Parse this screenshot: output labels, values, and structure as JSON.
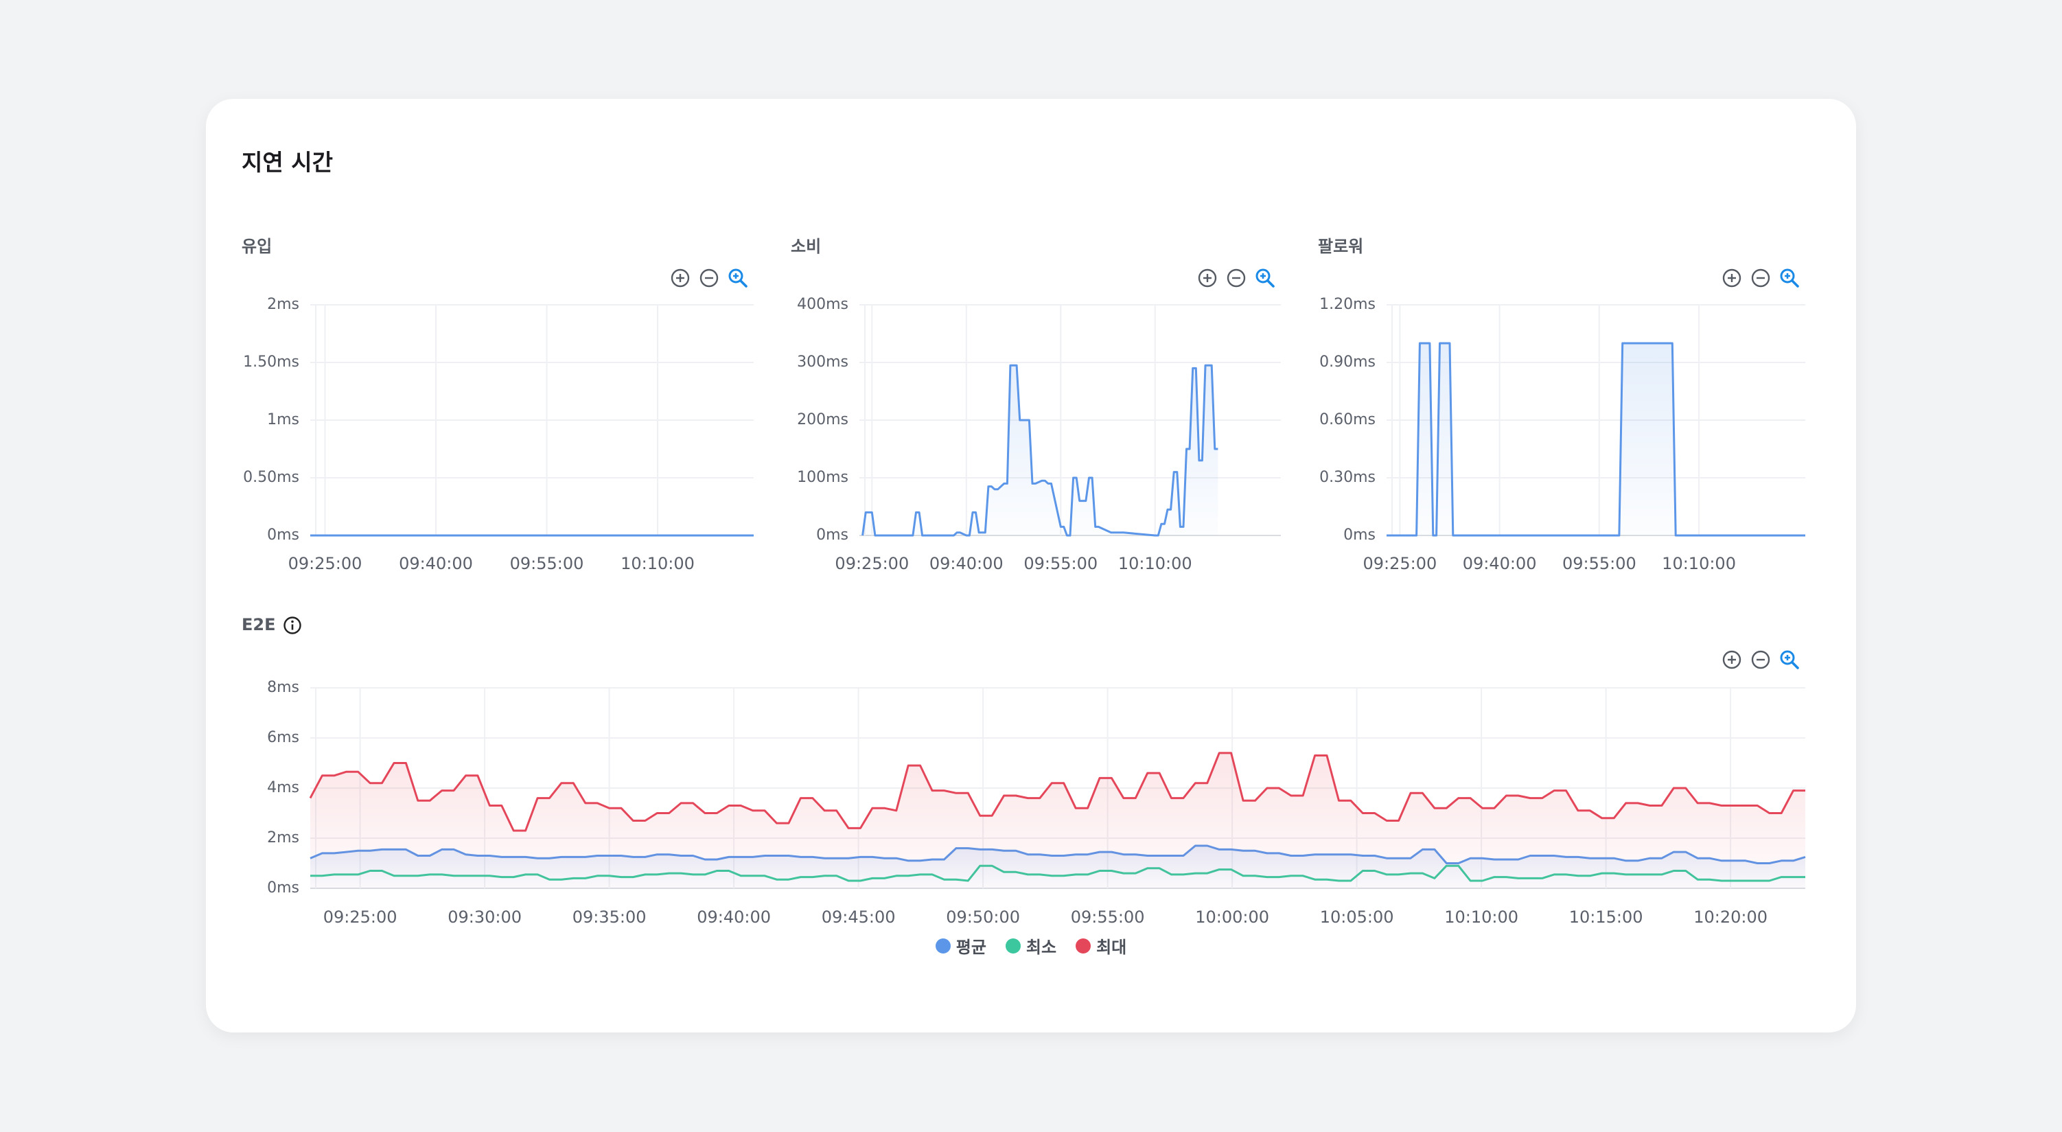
{
  "card": {
    "title": "지연 시간"
  },
  "colors": {
    "avg": "#5b96e8",
    "min": "#3cc79e",
    "max": "#e5475a",
    "accent": "#1a8ae6"
  },
  "icons": {
    "zoom_in": "zoom-in-circle-icon",
    "zoom_out": "zoom-out-circle-icon",
    "zoom_reset": "magnifier-zoom-icon",
    "info": "info-icon"
  },
  "panels": {
    "inflow": {
      "title": "유입",
      "chart_data": {
        "type": "area",
        "yticks": [
          "0ms",
          "0.50ms",
          "1ms",
          "1.50ms",
          "2ms"
        ],
        "ylim": [
          0,
          2
        ],
        "xticks": [
          "09:25:00",
          "09:40:00",
          "09:55:00",
          "10:10:00"
        ],
        "xlim": [
          -2,
          58
        ],
        "series": [
          {
            "x": [
              -2,
              58
            ],
            "values": [
              0,
              0
            ]
          }
        ]
      }
    },
    "consume": {
      "title": "소비",
      "chart_data": {
        "type": "line",
        "yticks": [
          "0ms",
          "100ms",
          "200ms",
          "300ms",
          "400ms"
        ],
        "ylim": [
          0,
          400
        ],
        "xticks": [
          "09:25:00",
          "09:40:00",
          "09:55:00",
          "10:10:00"
        ],
        "xlim": [
          -2,
          65
        ],
        "series": [
          {
            "x": [
              -1.5,
              -1,
              0,
              0.5,
              6.5,
              7,
              7.5,
              8,
              13,
              13.5,
              14,
              15,
              15.5,
              16,
              16.5,
              17,
              18,
              18.5,
              19,
              19.5,
              20,
              21,
              21.5,
              22,
              23,
              23.5,
              25,
              25.5,
              26,
              27,
              27.5,
              28,
              28.5,
              30,
              30.5,
              31,
              31.5,
              32,
              32.5,
              33,
              34,
              34.5,
              35,
              35.5,
              36,
              38,
              40,
              45,
              45.5,
              46,
              46.5,
              47,
              47.5,
              48,
              48.5,
              49,
              49.5,
              50,
              50.5,
              51,
              51.5,
              52,
              52.5,
              53,
              54,
              54.5,
              55
            ],
            "values": [
              0,
              40,
              40,
              0,
              0,
              40,
              40,
              0,
              0,
              5,
              5,
              0,
              0,
              40,
              40,
              5,
              5,
              85,
              85,
              80,
              80,
              90,
              90,
              295,
              295,
              200,
              200,
              90,
              90,
              95,
              95,
              90,
              90,
              15,
              15,
              0,
              0,
              100,
              100,
              60,
              60,
              100,
              100,
              15,
              15,
              5,
              5,
              0,
              0,
              20,
              20,
              45,
              45,
              110,
              110,
              15,
              15,
              150,
              150,
              290,
              290,
              130,
              130,
              295,
              295,
              150,
              150
            ]
          }
        ]
      }
    },
    "follower": {
      "title": "팔로워",
      "chart_data": {
        "type": "line",
        "yticks": [
          "0ms",
          "0.30ms",
          "0.60ms",
          "0.90ms",
          "1.20ms"
        ],
        "ylim": [
          0,
          1.2
        ],
        "xticks": [
          "09:25:00",
          "09:40:00",
          "09:55:00",
          "10:10:00"
        ],
        "xlim": [
          -2,
          61
        ],
        "series": [
          {
            "x": [
              -2,
              2.5,
              3,
              4.5,
              5,
              5.5,
              6,
              7.5,
              8,
              33,
              33.5,
              41,
              41.5,
              61
            ],
            "values": [
              0,
              0,
              1,
              1,
              0,
              0,
              1,
              1,
              0,
              0,
              1,
              1,
              0,
              0
            ]
          }
        ]
      }
    },
    "e2e": {
      "title": "E2E",
      "legend": [
        "평균",
        "최소",
        "최대"
      ],
      "chart_data": {
        "type": "area",
        "yticks": [
          "0ms",
          "2ms",
          "4ms",
          "6ms",
          "8ms"
        ],
        "ylim": [
          0,
          8
        ],
        "xticks": [
          "09:25:00",
          "09:30:00",
          "09:35:00",
          "09:40:00",
          "09:45:00",
          "09:50:00",
          "09:55:00",
          "10:00:00",
          "10:05:00",
          "10:10:00",
          "10:15:00",
          "10:20:00"
        ],
        "xlim": [
          -2,
          58
        ],
        "series": [
          {
            "name": "평균",
            "values": [
              1.2,
              1.4,
              1.4,
              1.45,
              1.5,
              1.5,
              1.55,
              1.55,
              1.55,
              1.3,
              1.3,
              1.55,
              1.55,
              1.35,
              1.3,
              1.3,
              1.25,
              1.25,
              1.25,
              1.2,
              1.2,
              1.25,
              1.25,
              1.25,
              1.3,
              1.3,
              1.3,
              1.25,
              1.25,
              1.35,
              1.35,
              1.3,
              1.3,
              1.15,
              1.15,
              1.25,
              1.25,
              1.25,
              1.3,
              1.3,
              1.3,
              1.25,
              1.25,
              1.2,
              1.2,
              1.2,
              1.25,
              1.25,
              1.2,
              1.2,
              1.1,
              1.1,
              1.15,
              1.15,
              1.6,
              1.6,
              1.55,
              1.55,
              1.5,
              1.5,
              1.35,
              1.35,
              1.3,
              1.3,
              1.35,
              1.35,
              1.45,
              1.45,
              1.35,
              1.35,
              1.3,
              1.3,
              1.3,
              1.3,
              1.7,
              1.7,
              1.55,
              1.55,
              1.5,
              1.5,
              1.4,
              1.4,
              1.3,
              1.3,
              1.35,
              1.35,
              1.35,
              1.35,
              1.3,
              1.3,
              1.2,
              1.2,
              1.2,
              1.55,
              1.55,
              1.0,
              1.0,
              1.2,
              1.2,
              1.15,
              1.15,
              1.15,
              1.3,
              1.3,
              1.3,
              1.25,
              1.25,
              1.2,
              1.2,
              1.2,
              1.1,
              1.1,
              1.2,
              1.2,
              1.45,
              1.45,
              1.2,
              1.2,
              1.1,
              1.1,
              1.1,
              1.0,
              1.0,
              1.1,
              1.1,
              1.25
            ]
          },
          {
            "name": "최소",
            "values": [
              0.5,
              0.5,
              0.55,
              0.55,
              0.55,
              0.7,
              0.7,
              0.5,
              0.5,
              0.5,
              0.55,
              0.55,
              0.5,
              0.5,
              0.5,
              0.5,
              0.45,
              0.45,
              0.55,
              0.55,
              0.35,
              0.35,
              0.4,
              0.4,
              0.5,
              0.5,
              0.45,
              0.45,
              0.55,
              0.55,
              0.6,
              0.6,
              0.55,
              0.55,
              0.7,
              0.7,
              0.5,
              0.5,
              0.5,
              0.35,
              0.35,
              0.45,
              0.45,
              0.5,
              0.5,
              0.3,
              0.3,
              0.4,
              0.4,
              0.5,
              0.5,
              0.55,
              0.55,
              0.35,
              0.35,
              0.3,
              0.9,
              0.9,
              0.65,
              0.65,
              0.55,
              0.55,
              0.5,
              0.5,
              0.55,
              0.55,
              0.7,
              0.7,
              0.6,
              0.6,
              0.8,
              0.8,
              0.55,
              0.55,
              0.6,
              0.6,
              0.75,
              0.75,
              0.5,
              0.5,
              0.45,
              0.45,
              0.5,
              0.5,
              0.35,
              0.35,
              0.3,
              0.3,
              0.7,
              0.7,
              0.55,
              0.55,
              0.6,
              0.6,
              0.4,
              0.9,
              0.9,
              0.3,
              0.3,
              0.45,
              0.45,
              0.4,
              0.4,
              0.4,
              0.55,
              0.55,
              0.5,
              0.5,
              0.6,
              0.6,
              0.55,
              0.55,
              0.55,
              0.55,
              0.7,
              0.7,
              0.35,
              0.35,
              0.3,
              0.3,
              0.3,
              0.3,
              0.3,
              0.45,
              0.45,
              0.45
            ]
          },
          {
            "name": "최대",
            "values": [
              3.6,
              4.5,
              4.5,
              4.65,
              4.65,
              4.2,
              4.2,
              5.0,
              5.0,
              3.5,
              3.5,
              3.9,
              3.9,
              4.5,
              4.5,
              3.3,
              3.3,
              2.3,
              2.3,
              3.6,
              3.6,
              4.2,
              4.2,
              3.4,
              3.4,
              3.2,
              3.2,
              2.7,
              2.7,
              3.0,
              3.0,
              3.4,
              3.4,
              3.0,
              3.0,
              3.3,
              3.3,
              3.1,
              3.1,
              2.6,
              2.6,
              3.6,
              3.6,
              3.1,
              3.1,
              2.4,
              2.4,
              3.2,
              3.2,
              3.1,
              4.9,
              4.9,
              3.9,
              3.9,
              3.8,
              3.8,
              2.9,
              2.9,
              3.7,
              3.7,
              3.6,
              3.6,
              4.2,
              4.2,
              3.2,
              3.2,
              4.4,
              4.4,
              3.6,
              3.6,
              4.6,
              4.6,
              3.6,
              3.6,
              4.2,
              4.2,
              5.4,
              5.4,
              3.5,
              3.5,
              4.0,
              4.0,
              3.7,
              3.7,
              5.3,
              5.3,
              3.5,
              3.5,
              3.0,
              3.0,
              2.7,
              2.7,
              3.8,
              3.8,
              3.2,
              3.2,
              3.6,
              3.6,
              3.2,
              3.2,
              3.7,
              3.7,
              3.6,
              3.6,
              3.9,
              3.9,
              3.1,
              3.1,
              2.8,
              2.8,
              3.4,
              3.4,
              3.3,
              3.3,
              4.0,
              4.0,
              3.4,
              3.4,
              3.3,
              3.3,
              3.3,
              3.3,
              3.0,
              3.0,
              3.9,
              3.9
            ]
          }
        ]
      }
    }
  }
}
